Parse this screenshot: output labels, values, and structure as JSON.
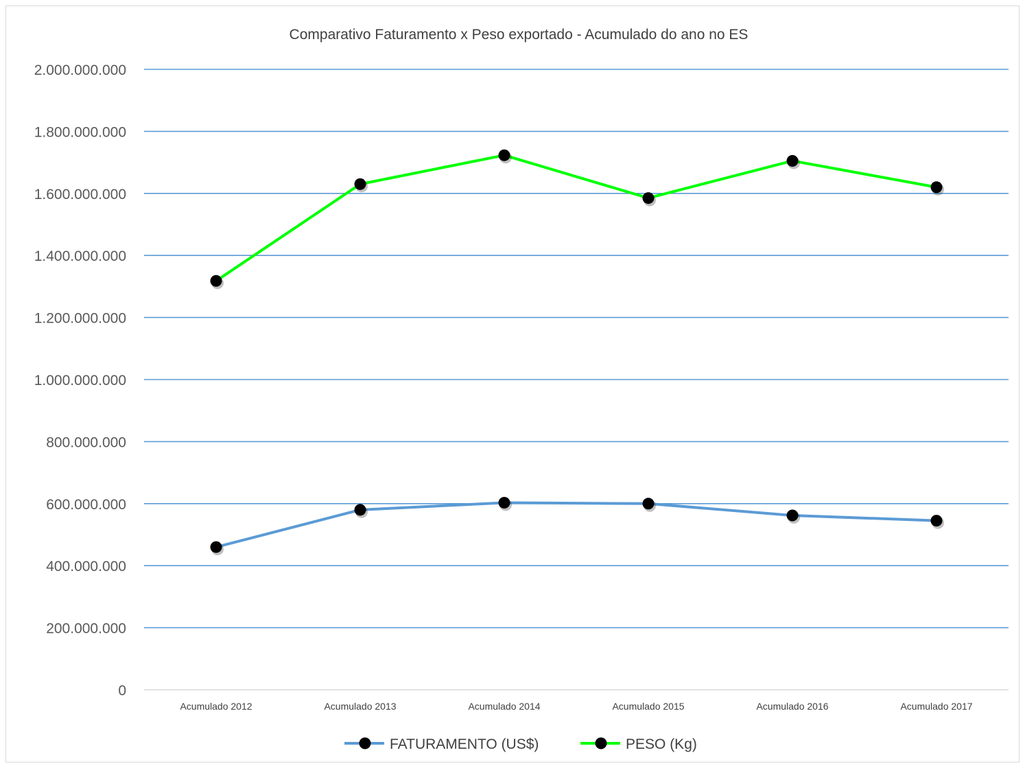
{
  "chart_data": {
    "type": "line",
    "title": "Comparativo Faturamento x Peso exportado - Acumulado do ano no ES",
    "xlabel": "",
    "ylabel": "",
    "categories": [
      "Acumulado 2012",
      "Acumulado 2013",
      "Acumulado 2014",
      "Acumulado 2015",
      "Acumulado 2016",
      "Acumulado 2017"
    ],
    "ylim": [
      0,
      2000000000
    ],
    "yticks": [
      0,
      200000000,
      400000000,
      600000000,
      800000000,
      1000000000,
      1200000000,
      1400000000,
      1600000000,
      1800000000,
      2000000000
    ],
    "ytick_labels": [
      "0",
      "200.000.000",
      "400.000.000",
      "600.000.000",
      "800.000.000",
      "1.000.000.000",
      "1.200.000.000",
      "1.400.000.000",
      "1.600.000.000",
      "1.800.000.000",
      "2.000.000.000"
    ],
    "grid": "horizontal",
    "legend_position": "bottom",
    "series": [
      {
        "name": "FATURAMENTO (US$)",
        "color": "#5b9bd5",
        "marker_color": "#000000",
        "values": [
          460000000,
          580000000,
          603000000,
          600000000,
          562000000,
          545000000
        ]
      },
      {
        "name": "PESO (Kg)",
        "color": "#00ff00",
        "marker_color": "#000000",
        "values": [
          1318000000,
          1630000000,
          1723000000,
          1585000000,
          1705000000,
          1620000000
        ]
      }
    ],
    "gridline_color": "#5b9bd5"
  }
}
